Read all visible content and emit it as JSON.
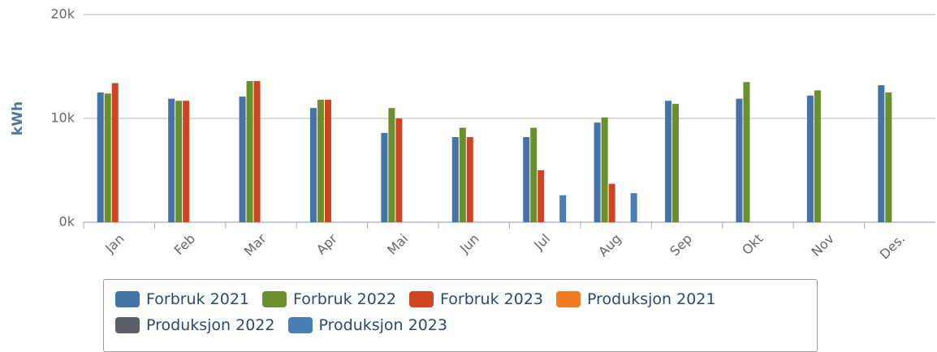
{
  "chart_data": {
    "type": "bar",
    "y_axis_label": "kWh",
    "categories": [
      "Jan",
      "Feb",
      "Mar",
      "Apr",
      "Mai",
      "Jun",
      "Jul",
      "Aug",
      "Sep",
      "Okt",
      "Nov",
      "Des."
    ],
    "series": [
      {
        "name": "Forbruk 2021",
        "color": "#4572a7",
        "values": [
          12.5,
          11.9,
          12.1,
          11.0,
          8.6,
          8.2,
          8.2,
          9.6,
          11.7,
          11.9,
          12.2,
          13.2
        ]
      },
      {
        "name": "Forbruk 2022",
        "color": "#6a8f2c",
        "values": [
          12.4,
          11.7,
          13.6,
          11.8,
          11.0,
          9.1,
          9.1,
          10.1,
          11.4,
          13.5,
          12.7,
          12.5
        ]
      },
      {
        "name": "Forbruk 2023",
        "color": "#cf4520",
        "values": [
          13.4,
          11.7,
          13.6,
          11.8,
          10.0,
          8.2,
          5.0,
          3.7,
          null,
          null,
          null,
          null
        ]
      },
      {
        "name": "Produksjon 2021",
        "color": "#f07c22",
        "values": [
          null,
          null,
          null,
          null,
          null,
          null,
          null,
          null,
          null,
          null,
          null,
          null
        ]
      },
      {
        "name": "Produksjon 2022",
        "color": "#5b5f66",
        "values": [
          null,
          null,
          null,
          null,
          null,
          null,
          null,
          null,
          null,
          null,
          null,
          null
        ]
      },
      {
        "name": "Produksjon 2023",
        "color": "#4a7fb5",
        "values": [
          null,
          null,
          null,
          null,
          null,
          null,
          2.6,
          2.8,
          null,
          null,
          null,
          null
        ]
      }
    ],
    "ylim": [
      0,
      20
    ],
    "yticks": [
      {
        "value": 0,
        "label": "0k"
      },
      {
        "value": 10,
        "label": "10k"
      },
      {
        "value": 20,
        "label": "20k"
      }
    ],
    "grid": true
  }
}
